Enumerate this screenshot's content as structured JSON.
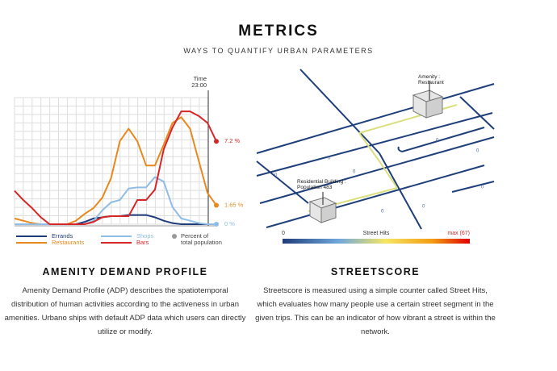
{
  "header": {
    "title": "METRICS",
    "subtitle": "WAYS TO QUANTIFY URBAN PARAMETERS"
  },
  "chart_data": {
    "type": "line",
    "categories": [
      null,
      null,
      null,
      null,
      null,
      null,
      null,
      null,
      null,
      null,
      null,
      null,
      null,
      null,
      null,
      null,
      null,
      null,
      null,
      null,
      null,
      null,
      null,
      null
    ],
    "ylim": [
      0,
      11
    ],
    "series": [
      {
        "name": "Errands",
        "color": "#1f3c7a",
        "values": [
          0,
          0,
          0,
          0,
          0,
          0,
          0,
          0,
          0.2,
          0.5,
          0.6,
          0.7,
          0.7,
          0.8,
          0.8,
          0.8,
          0.6,
          0.3,
          0.1,
          0,
          0,
          0,
          0,
          0
        ]
      },
      {
        "name": "Restaurants",
        "color": "#e8891e",
        "values": [
          0.5,
          0.3,
          0.1,
          0,
          0,
          0,
          0,
          0.3,
          0.9,
          1.4,
          2.3,
          4.0,
          7.2,
          8.3,
          7.2,
          5.1,
          5.1,
          6.9,
          8.8,
          9.3,
          8.3,
          5.5,
          2.7,
          1.65
        ]
      },
      {
        "name": "Shops",
        "color": "#8fbde6",
        "values": [
          0,
          0,
          0,
          0,
          0,
          0,
          0,
          0,
          0,
          0.3,
          1.2,
          1.9,
          2.1,
          3.1,
          3.2,
          3.2,
          4.1,
          3.7,
          1.5,
          0.5,
          0.3,
          0.1,
          0,
          0
        ]
      },
      {
        "name": "Bars",
        "color": "#d62728",
        "values": [
          2.9,
          2.1,
          1.4,
          0.6,
          0,
          0,
          0,
          0,
          0,
          0.2,
          0.6,
          0.7,
          0.7,
          0.7,
          2.1,
          2.1,
          3.0,
          6.5,
          8.4,
          9.8,
          9.8,
          9.4,
          8.8,
          7.2
        ]
      }
    ],
    "marker": {
      "title": "Time",
      "label": "23:00"
    },
    "annotations": [
      {
        "label": "7.2 %",
        "value": 7.2,
        "color": "#d62728"
      },
      {
        "label": "1.65 %",
        "value": 1.65,
        "color": "#e8891e"
      },
      {
        "label": "0 %",
        "value": 0,
        "color": "#8fbde6"
      }
    ],
    "legend_extra": {
      "label": "Percent of total population",
      "color": "#999999"
    }
  },
  "map": {
    "amenity": "Amenity : Restaurant",
    "building": "Residential Building : Population 483",
    "street_labels": [
      "0",
      "0",
      "0",
      "0",
      "0",
      "0",
      "0",
      "0"
    ],
    "colorbar": {
      "min": "0",
      "title": "Street Hits",
      "max": "max (67)"
    }
  },
  "sections": [
    {
      "title": "AMENITY DEMAND PROFILE",
      "text": "Amenity Demand Profile (ADP) describes the spatiotemporal distribution of human activities according to the activeness in urban amenities. Urbano ships with default ADP data which users can directly utilize or modify."
    },
    {
      "title": "STREETSCORE",
      "text": "Streetscore is measured using a simple counter called Street Hits, which evaluates how many people use a certain street segment in the given trips. This can be an indicator of how vibrant a street is within the network."
    }
  ]
}
